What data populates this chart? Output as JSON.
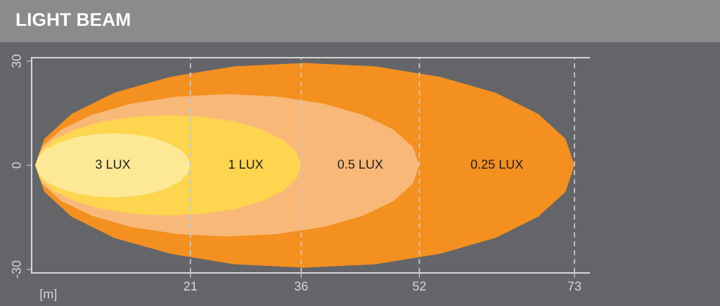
{
  "chart_data": {
    "type": "area",
    "title": "LIGHT BEAM",
    "xlabel": "[m]",
    "xlim": [
      -0.5,
      75
    ],
    "xticks": [
      21,
      36,
      52,
      73
    ],
    "ylim": [
      -31,
      31
    ],
    "yticks": [
      -30,
      0,
      30
    ],
    "grid": false,
    "legend": false,
    "ref_lines": [
      {
        "axis": "x",
        "value": 21,
        "color": "#c8c8c8",
        "line_style": "dashed"
      },
      {
        "axis": "x",
        "value": 36,
        "color": "#c8c8c8",
        "line_style": "dashed"
      },
      {
        "axis": "x",
        "value": 52,
        "color": "#c8c8c8",
        "line_style": "dashed"
      },
      {
        "axis": "x",
        "value": 73,
        "color": "#c8c8c8",
        "line_style": "dashed"
      }
    ],
    "series": [
      {
        "name": "0.25 LUX",
        "color": "#f39020",
        "x": [
          0,
          1.2,
          4.9,
          10.7,
          18.3,
          27,
          36.5,
          46,
          54.8,
          62.3,
          68.1,
          71.8,
          73
        ],
        "values": [
          0,
          7.6,
          14.8,
          20.9,
          25.5,
          28.5,
          29.5,
          28.5,
          25.5,
          20.9,
          14.8,
          7.6,
          0
        ]
      },
      {
        "color": "#f39020",
        "x": [
          0,
          1.2,
          4.9,
          10.7,
          18.3,
          27,
          36.5,
          46,
          54.8,
          62.3,
          68.1,
          71.8,
          73
        ],
        "values": [
          0,
          -7.6,
          -14.8,
          -20.9,
          -25.5,
          -28.5,
          -29.5,
          -28.5,
          -25.5,
          -20.9,
          -14.8,
          -7.6,
          0
        ]
      },
      {
        "name": "0.5 LUX",
        "color": "#f8b878",
        "x": [
          0,
          0.9,
          3.5,
          7.6,
          13,
          19.3,
          26,
          32.7,
          39,
          44.4,
          48.5,
          51.1,
          52
        ],
        "values": [
          0,
          5.3,
          10.3,
          14.5,
          17.8,
          19.8,
          20.5,
          19.8,
          17.8,
          14.5,
          10.3,
          5.3,
          0
        ]
      },
      {
        "color": "#f8b878",
        "x": [
          0,
          0.9,
          3.5,
          7.6,
          13,
          19.3,
          26,
          32.7,
          39,
          44.4,
          48.5,
          51.1,
          52
        ],
        "values": [
          0,
          -5.3,
          -10.3,
          -14.5,
          -17.8,
          -19.8,
          -20.5,
          -19.8,
          -17.8,
          -14.5,
          -10.3,
          -5.3,
          0
        ]
      },
      {
        "name": "1 LUX",
        "color": "#fdd54f",
        "x": [
          0,
          0.6,
          2.4,
          5.3,
          9,
          13.3,
          18,
          22.7,
          27,
          30.7,
          33.6,
          35.4,
          36
        ],
        "values": [
          0,
          3.8,
          7.3,
          10.3,
          12.6,
          14,
          14.5,
          14,
          12.6,
          10.3,
          7.3,
          3.8,
          0
        ]
      },
      {
        "color": "#fdd54f",
        "x": [
          0,
          0.6,
          2.4,
          5.3,
          9,
          13.3,
          18,
          22.7,
          27,
          30.7,
          33.6,
          35.4,
          36
        ],
        "values": [
          0,
          -3.8,
          -7.3,
          -10.3,
          -12.6,
          -14,
          -14.5,
          -14,
          -12.6,
          -10.3,
          -7.3,
          -3.8,
          0
        ]
      },
      {
        "name": "3 LUX",
        "color": "#fde995",
        "x": [
          0,
          0.4,
          1.4,
          3.1,
          5.3,
          7.8,
          10.5,
          13.2,
          15.8,
          17.9,
          19.6,
          20.6,
          21
        ],
        "values": [
          0,
          2.4,
          4.6,
          6.5,
          8,
          8.9,
          9.2,
          8.9,
          8,
          6.5,
          4.6,
          2.4,
          0
        ]
      },
      {
        "color": "#fde995",
        "x": [
          0,
          0.4,
          1.4,
          3.1,
          5.3,
          7.8,
          10.5,
          13.2,
          15.8,
          17.9,
          19.6,
          20.6,
          21
        ],
        "values": [
          0,
          -2.4,
          -4.6,
          -6.5,
          -8,
          -8.9,
          -9.2,
          -8.9,
          -8,
          -6.5,
          -4.6,
          -2.4,
          0
        ]
      }
    ]
  }
}
